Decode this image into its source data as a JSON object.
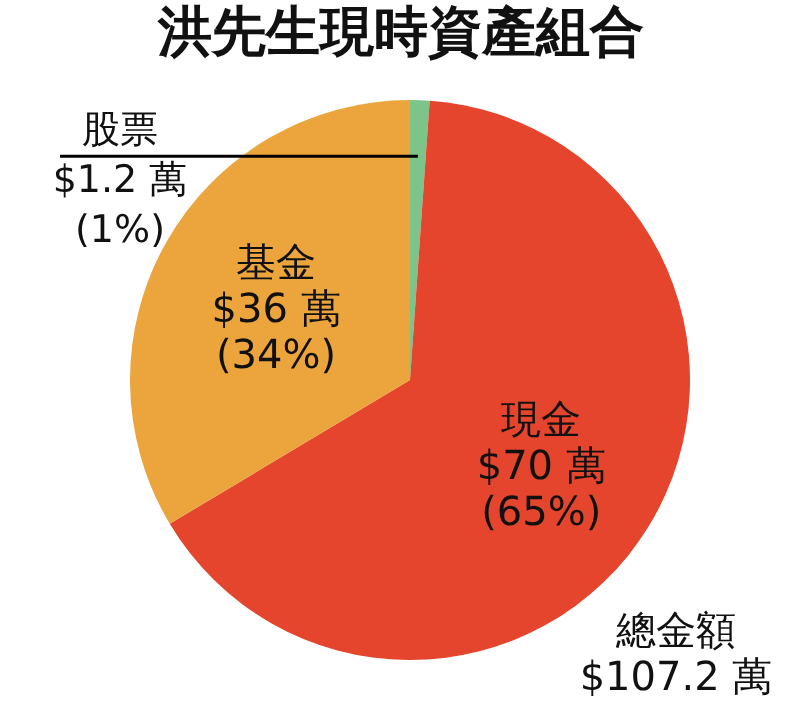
{
  "chart_data": {
    "type": "pie",
    "title": "洪先生現時資產組合",
    "categories": [
      "股票",
      "現金",
      "基金"
    ],
    "values": [
      1.2,
      70,
      36
    ],
    "colors": [
      "#7cc48a",
      "#e5452c",
      "#eba53c"
    ],
    "value_labels": [
      "$1.2 萬\n(1%)",
      "$70 萬\n(65%)",
      "$36 萬\n(34%)"
    ],
    "annotations": [
      "總金額\n$107.2 萬"
    ]
  }
}
